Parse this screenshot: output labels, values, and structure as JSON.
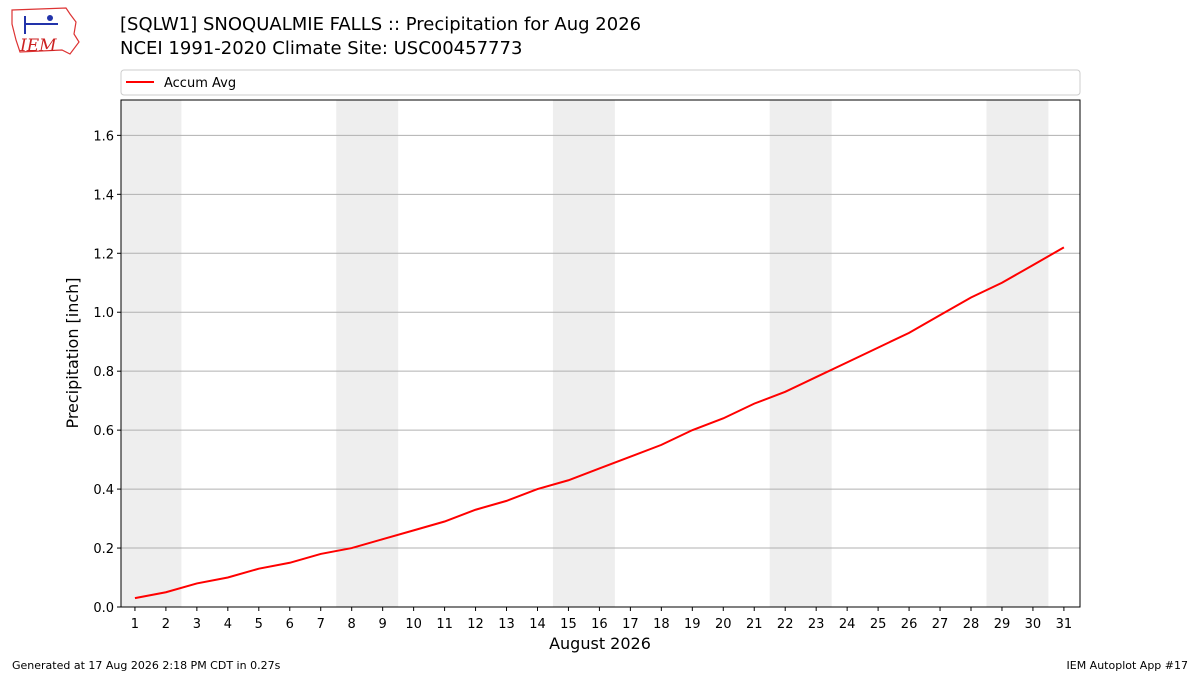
{
  "logo": "IEM",
  "footer": {
    "left": "Generated at 17 Aug 2026 2:18 PM CDT in 0.27s",
    "right": "IEM Autoplot App #17"
  },
  "chart_data": {
    "type": "line",
    "title": "[SQLW1] SNOQUALMIE FALLS :: Precipitation for Aug 2026",
    "subtitle": "NCEI 1991-2020 Climate Site: USC00457773",
    "xlabel": "August 2026",
    "ylabel": "Precipitation [inch]",
    "x": [
      1,
      2,
      3,
      4,
      5,
      6,
      7,
      8,
      9,
      10,
      11,
      12,
      13,
      14,
      15,
      16,
      17,
      18,
      19,
      20,
      21,
      22,
      23,
      24,
      25,
      26,
      27,
      28,
      29,
      30,
      31
    ],
    "series": [
      {
        "name": "Accum Avg",
        "color": "#ff0000",
        "values": [
          0.03,
          0.05,
          0.08,
          0.1,
          0.13,
          0.15,
          0.18,
          0.2,
          0.23,
          0.26,
          0.29,
          0.33,
          0.36,
          0.4,
          0.43,
          0.47,
          0.51,
          0.55,
          0.6,
          0.64,
          0.69,
          0.73,
          0.78,
          0.83,
          0.88,
          0.93,
          0.99,
          1.05,
          1.1,
          1.16,
          1.22
        ]
      }
    ],
    "xlim": [
      0.55,
      31.52
    ],
    "ylim": [
      0,
      1.72
    ],
    "xticks": [
      1,
      2,
      3,
      4,
      5,
      6,
      7,
      8,
      9,
      10,
      11,
      12,
      13,
      14,
      15,
      16,
      17,
      18,
      19,
      20,
      21,
      22,
      23,
      24,
      25,
      26,
      27,
      28,
      29,
      30,
      31
    ],
    "yticks": [
      {
        "value": 0,
        "label": "0.0"
      },
      {
        "value": 0.2,
        "label": "0.2"
      },
      {
        "value": 0.4,
        "label": "0.4"
      },
      {
        "value": 0.6,
        "label": "0.6"
      },
      {
        "value": 0.8,
        "label": "0.8"
      },
      {
        "value": 1.0,
        "label": "1.0"
      },
      {
        "value": 1.2,
        "label": "1.2"
      },
      {
        "value": 1.4,
        "label": "1.4"
      },
      {
        "value": 1.6,
        "label": "1.6"
      }
    ],
    "shaded_ranges": [
      [
        0.5,
        2.5
      ],
      [
        7.5,
        9.5
      ],
      [
        14.5,
        16.5
      ],
      [
        21.5,
        23.5
      ],
      [
        28.5,
        30.5
      ]
    ],
    "shade_color": "#eeeeee",
    "grid": "y",
    "legend": "top"
  }
}
